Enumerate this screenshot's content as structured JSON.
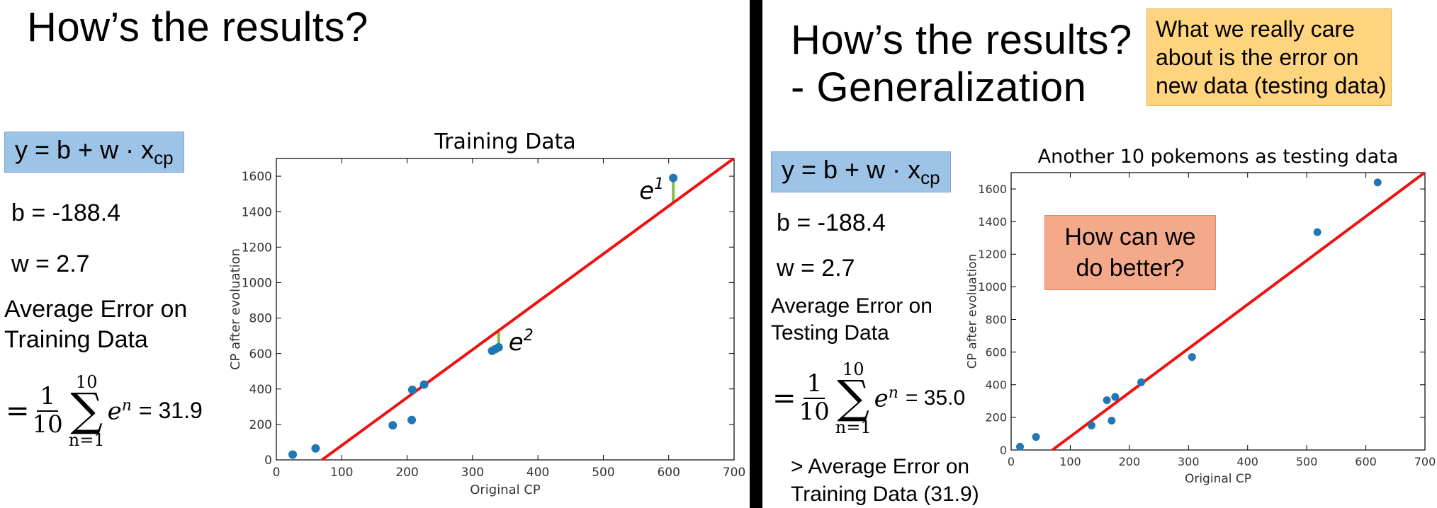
{
  "left": {
    "title": "How’s the results?",
    "equation": {
      "base": "y = b + w · x",
      "sub": "cp"
    },
    "b_line": "b = -188.4",
    "w_line": "w = 2.7",
    "avg_error_label": "Average Error on\nTraining Data",
    "formula": {
      "eq": "=",
      "num": "1",
      "den": "10",
      "sum_top": "10",
      "sum_bottom": "n=1",
      "term": "e",
      "term_sup": "n",
      "result": "= 31.9"
    }
  },
  "right": {
    "title": "How’s the results?\n- Generalization",
    "callout": "What we really care\nabout is the error on\nnew data (testing data)",
    "equation": {
      "base": "y = b + w · x",
      "sub": "cp"
    },
    "b_line": "b = -188.4",
    "w_line": "w = 2.7",
    "avg_error_label": "Average Error on\nTesting Data",
    "formula": {
      "eq": "=",
      "num": "1",
      "den": "10",
      "sum_top": "10",
      "sum_bottom": "n=1",
      "term": "e",
      "term_sup": "n",
      "result": "= 35.0"
    },
    "comparison": "> Average Error on\nTraining Data (31.9)",
    "better_box": "How can we\ndo better?"
  },
  "chart_data": [
    {
      "type": "scatter",
      "title": "Training Data",
      "xlabel": "Original CP",
      "ylabel": "CP after evoluation",
      "xlim": [
        0,
        700
      ],
      "ylim": [
        0,
        1700
      ],
      "xticks": [
        0,
        100,
        200,
        300,
        400,
        500,
        600,
        700
      ],
      "yticks": [
        0,
        200,
        400,
        600,
        800,
        1000,
        1200,
        1400,
        1600
      ],
      "points": [
        [
          25,
          30
        ],
        [
          60,
          65
        ],
        [
          178,
          195
        ],
        [
          207,
          225
        ],
        [
          208,
          395
        ],
        [
          226,
          425
        ],
        [
          330,
          615
        ],
        [
          335,
          625
        ],
        [
          340,
          635
        ],
        [
          607,
          1590
        ]
      ],
      "fit_line": {
        "b": -188.4,
        "w": 2.7
      },
      "point_color": "#1f77b4",
      "line_color": "#ee1111",
      "error_color": "#7dc242",
      "annotations": [
        {
          "label": "e",
          "sup": "1",
          "x": 607,
          "y_from": 1590,
          "y_to": 1450
        },
        {
          "label": "e",
          "sup": "2",
          "x": 340,
          "y_from": 725,
          "y_to": 635
        }
      ]
    },
    {
      "type": "scatter",
      "title": "Another 10 pokemons as testing data",
      "xlabel": "Original CP",
      "ylabel": "CP after evoluation",
      "xlim": [
        0,
        700
      ],
      "ylim": [
        0,
        1700
      ],
      "xticks": [
        0,
        100,
        200,
        300,
        400,
        500,
        600,
        700
      ],
      "yticks": [
        0,
        200,
        400,
        600,
        800,
        1000,
        1200,
        1400,
        1600
      ],
      "points": [
        [
          15,
          20
        ],
        [
          42,
          80
        ],
        [
          136,
          150
        ],
        [
          162,
          305
        ],
        [
          170,
          180
        ],
        [
          176,
          325
        ],
        [
          220,
          415
        ],
        [
          306,
          570
        ],
        [
          518,
          1335
        ],
        [
          620,
          1640
        ]
      ],
      "fit_line": {
        "b": -188.4,
        "w": 2.7
      },
      "point_color": "#1f77b4",
      "line_color": "#ee1111"
    }
  ]
}
